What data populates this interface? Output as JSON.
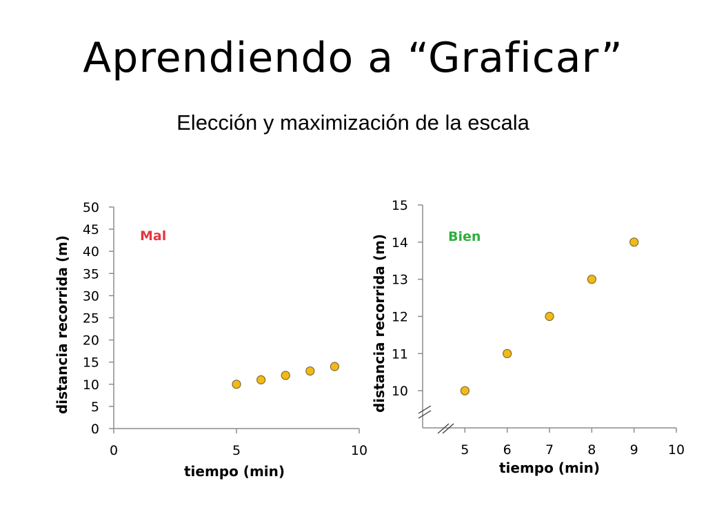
{
  "slide": {
    "title": "Aprendiendo a “Graficar”",
    "subtitle": "Elección y maximización de la escala"
  },
  "colors": {
    "point_fill": "#f5b914",
    "point_stroke": "#7a6a3a",
    "axis": "#8c8c8c",
    "bad_label": "#e8343f",
    "good_label": "#2fae3c"
  },
  "chart_data": [
    {
      "type": "scatter",
      "annotation": "Mal",
      "annotation_color": "#e8343f",
      "xlabel": "tiempo (min)",
      "ylabel": "distancia recorrida (m)",
      "xlim": [
        0,
        10
      ],
      "ylim": [
        0,
        50
      ],
      "xticks": [
        0,
        5,
        10
      ],
      "yticks": [
        0,
        5,
        10,
        15,
        20,
        25,
        30,
        35,
        40,
        45,
        50
      ],
      "axis_break": false,
      "grid": false,
      "series": [
        {
          "x": [
            5,
            6,
            7,
            8,
            9
          ],
          "y": [
            10,
            11,
            12,
            13,
            14
          ]
        }
      ]
    },
    {
      "type": "scatter",
      "annotation": "Bien",
      "annotation_color": "#2fae3c",
      "xlabel": "tiempo (min)",
      "ylabel": "distancia recorrida (m)",
      "xlim": [
        4,
        10
      ],
      "ylim": [
        9,
        15
      ],
      "xticks": [
        5,
        6,
        7,
        8,
        9,
        10
      ],
      "yticks": [
        10,
        11,
        12,
        13,
        14,
        15
      ],
      "axis_break": true,
      "grid": false,
      "series": [
        {
          "x": [
            5,
            6,
            7,
            8,
            9
          ],
          "y": [
            10,
            11,
            12,
            13,
            14
          ]
        }
      ]
    }
  ]
}
